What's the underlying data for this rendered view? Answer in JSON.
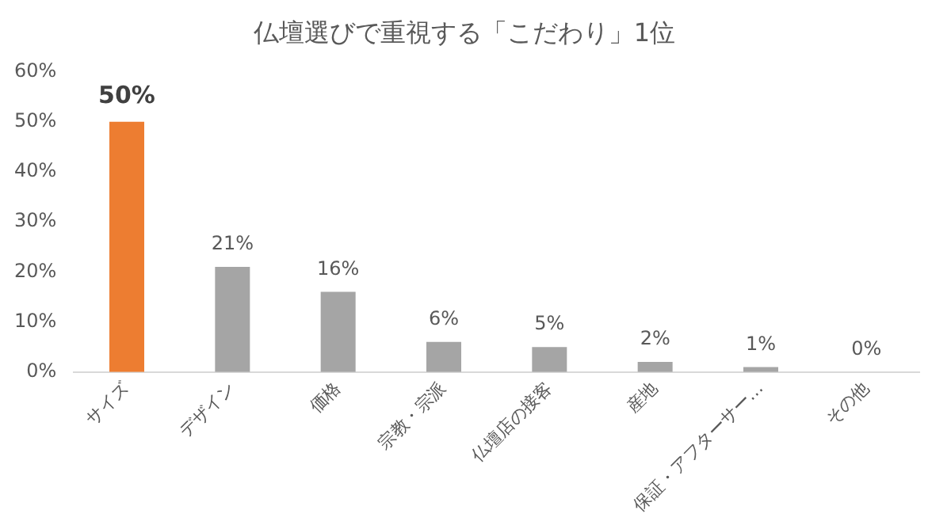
{
  "chart_data": {
    "type": "bar",
    "title": "仏壇選びで重視する「こだわり」1位",
    "categories": [
      "サイズ",
      "デザイン",
      "価格",
      "宗教・宗派",
      "仏壇店の接客",
      "産地",
      "保証・アフターサー…",
      "その他"
    ],
    "values": [
      50,
      21,
      16,
      6,
      5,
      2,
      1,
      0
    ],
    "colors": [
      "#ed7d31",
      "#a5a5a5",
      "#a5a5a5",
      "#a5a5a5",
      "#a5a5a5",
      "#a5a5a5",
      "#a5a5a5",
      "#a5a5a5"
    ],
    "value_labels": [
      "50%",
      "21%",
      "16%",
      "6%",
      "5%",
      "2%",
      "1%",
      "0%"
    ],
    "ylim": [
      0,
      60
    ],
    "yticks": [
      {
        "value": 0,
        "label": "0%"
      },
      {
        "value": 10,
        "label": "10%"
      },
      {
        "value": 20,
        "label": "20%"
      },
      {
        "value": 30,
        "label": "30%"
      },
      {
        "value": 40,
        "label": "40%"
      },
      {
        "value": 50,
        "label": "50%"
      },
      {
        "value": 60,
        "label": "60%"
      }
    ],
    "grid": false,
    "legend": false
  }
}
